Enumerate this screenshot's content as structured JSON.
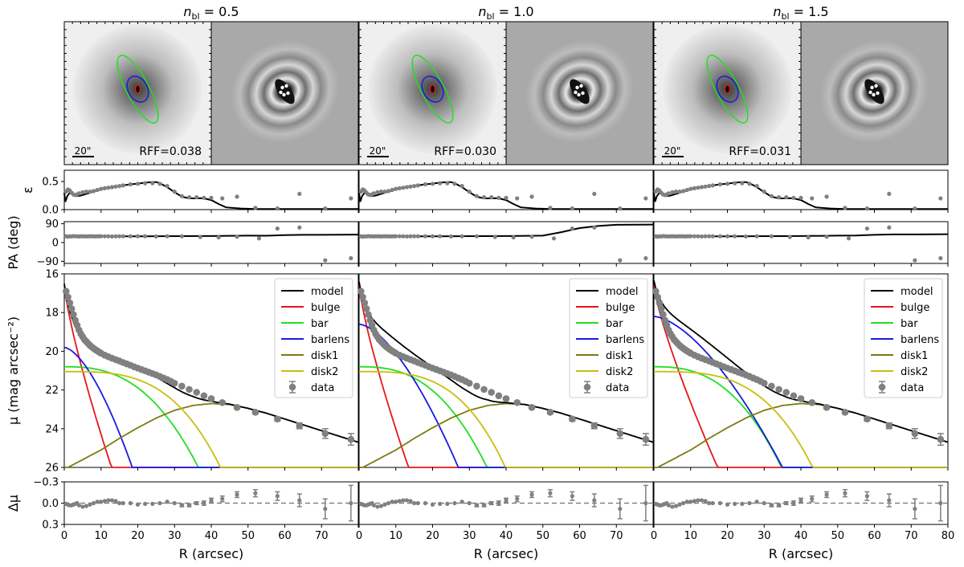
{
  "chart_data": {
    "type": "line",
    "layout": "5 rows x 3 columns",
    "columns": [
      {
        "title": "n_bl = 0.5",
        "title_sub": "bl",
        "title_value": " = 0.5",
        "rff": "RFF=0.038",
        "scale_label": "20\"",
        "bulge_end": 13.2,
        "bar_end": 36.5,
        "barlens_start": 19.8,
        "barlens_end": 18.5,
        "disk2_end": 42.5,
        "pa_end": 38
      },
      {
        "title": "n_bl = 1.0",
        "title_sub": "bl",
        "title_value": " = 1.0",
        "rff": "RFF=0.030",
        "scale_label": "20\"",
        "bulge_end": 13.8,
        "bar_end": 34.8,
        "barlens_start": 18.6,
        "barlens_end": 27.0,
        "disk2_end": 39.8,
        "pa_end": 86
      },
      {
        "title": "n_bl = 1.5",
        "title_sub": "bl",
        "title_value": " = 1.5",
        "rff": "RFF=0.031",
        "scale_label": "20\"",
        "bulge_end": 17.8,
        "bar_end": 34.7,
        "barlens_start": 18.2,
        "barlens_end": 35.0,
        "disk2_end": 43.2,
        "pa_end": 40
      }
    ],
    "x_axis": {
      "label": "R (arcsec)",
      "range": [
        0,
        80
      ],
      "ticks_left": [
        "0",
        "10",
        "20",
        "30",
        "40",
        "50",
        "60",
        "70"
      ],
      "ticks_right": [
        "0",
        "10",
        "20",
        "30",
        "40",
        "50",
        "60",
        "70",
        "80"
      ]
    },
    "ellipticity": {
      "ylabel": "ε",
      "range": [
        0,
        0.7
      ],
      "ticks": [
        "0.0",
        "0.5"
      ],
      "data_x": [
        0.5,
        1,
        1.5,
        2,
        2.5,
        3,
        3.5,
        4,
        5,
        6,
        7,
        8,
        9,
        10,
        11,
        12,
        13,
        14,
        15,
        16,
        18,
        20,
        22,
        24,
        26,
        28,
        30,
        32,
        34,
        36,
        38,
        40,
        43,
        47,
        52,
        58,
        64,
        71,
        78
      ],
      "data_y": [
        0.32,
        0.36,
        0.34,
        0.3,
        0.27,
        0.26,
        0.27,
        0.29,
        0.31,
        0.32,
        0.32,
        0.33,
        0.35,
        0.37,
        0.38,
        0.39,
        0.4,
        0.41,
        0.42,
        0.43,
        0.45,
        0.46,
        0.47,
        0.47,
        0.46,
        0.42,
        0.32,
        0.24,
        0.22,
        0.22,
        0.21,
        0.21,
        0.2,
        0.23,
        0.03,
        0.02,
        0.28,
        0.02,
        0.2
      ],
      "model_x": [
        0,
        0.3,
        0.8,
        1.5,
        2.5,
        3.5,
        4.5,
        6,
        8,
        10,
        12,
        14,
        16,
        18,
        20,
        22,
        24,
        25,
        26,
        28,
        30,
        32,
        34,
        36,
        37,
        38,
        40,
        42,
        44,
        48,
        52,
        60,
        70,
        80
      ],
      "model_y": [
        0.3,
        0.14,
        0.24,
        0.3,
        0.27,
        0.24,
        0.25,
        0.28,
        0.32,
        0.36,
        0.39,
        0.41,
        0.43,
        0.45,
        0.46,
        0.48,
        0.49,
        0.49,
        0.47,
        0.4,
        0.31,
        0.23,
        0.2,
        0.2,
        0.205,
        0.2,
        0.17,
        0.1,
        0.04,
        0.02,
        0.01,
        0.01,
        0.01,
        0.01
      ]
    },
    "pa": {
      "ylabel": "PA (deg)",
      "range": [
        -100,
        100
      ],
      "ticks": [
        "90",
        "0",
        "−90"
      ],
      "data_x": [
        0.5,
        1,
        1.5,
        2,
        2.5,
        3,
        3.5,
        4,
        4.5,
        5,
        5.5,
        6,
        6.5,
        7,
        7.5,
        8,
        8.5,
        9,
        9.5,
        10,
        11,
        12,
        13,
        14,
        15,
        16,
        18,
        20,
        22,
        25,
        28,
        32,
        37,
        42,
        47,
        53,
        58,
        64,
        71,
        78
      ],
      "data_y": [
        30,
        28,
        30,
        29,
        31,
        30,
        30,
        29,
        30,
        30,
        30,
        29,
        30,
        30,
        30,
        30,
        29,
        30,
        30,
        30,
        30,
        30,
        29,
        30,
        30,
        30,
        30,
        30,
        30,
        29,
        30,
        30,
        27,
        25,
        28,
        20,
        67,
        72,
        -85,
        -75
      ]
    },
    "mu": {
      "ylabel": "μ (mag arcsec⁻²)",
      "range": [
        16,
        26
      ],
      "inverted": true,
      "ticks": [
        "16",
        "18",
        "20",
        "22",
        "24",
        "26"
      ],
      "legend": [
        "model",
        "bulge",
        "bar",
        "barlens",
        "disk1",
        "disk2",
        "data"
      ],
      "data_x": [
        0.5,
        1,
        1.5,
        2,
        2.5,
        3,
        3.5,
        4,
        4.5,
        5,
        5.5,
        6,
        6.5,
        7,
        7.5,
        8,
        8.5,
        9,
        9.5,
        10,
        11,
        12,
        13,
        14,
        15,
        16,
        17,
        18,
        19,
        20,
        21,
        22,
        23,
        24,
        25,
        26,
        27,
        28,
        29,
        30,
        32,
        34,
        36,
        38,
        40,
        43,
        47,
        52,
        58,
        64,
        71,
        78
      ],
      "data_y": [
        16.9,
        17.2,
        17.5,
        17.8,
        18.1,
        18.4,
        18.65,
        18.9,
        19.1,
        19.25,
        19.4,
        19.5,
        19.6,
        19.7,
        19.78,
        19.85,
        19.92,
        19.98,
        20.04,
        20.1,
        20.2,
        20.28,
        20.36,
        20.43,
        20.5,
        20.58,
        20.65,
        20.72,
        20.8,
        20.87,
        20.94,
        21.01,
        21.08,
        21.15,
        21.22,
        21.3,
        21.38,
        21.46,
        21.55,
        21.65,
        21.8,
        21.97,
        22.12,
        22.3,
        22.45,
        22.65,
        22.9,
        23.15,
        23.5,
        23.85,
        24.25,
        24.55
      ],
      "err": [
        0.03,
        0.03,
        0.03,
        0.03,
        0.03,
        0.03,
        0.03,
        0.03,
        0.03,
        0.03,
        0.03,
        0.03,
        0.03,
        0.03,
        0.03,
        0.03,
        0.03,
        0.03,
        0.03,
        0.03,
        0.03,
        0.03,
        0.03,
        0.03,
        0.03,
        0.03,
        0.03,
        0.03,
        0.03,
        0.03,
        0.03,
        0.03,
        0.03,
        0.03,
        0.03,
        0.03,
        0.03,
        0.03,
        0.03,
        0.03,
        0.04,
        0.04,
        0.05,
        0.05,
        0.06,
        0.06,
        0.07,
        0.08,
        0.1,
        0.15,
        0.25,
        0.3
      ],
      "disk1": {
        "x": [
          0,
          5,
          10,
          15,
          20,
          25,
          30,
          35,
          40,
          45,
          50,
          55,
          60,
          65,
          70,
          75,
          80
        ],
        "y": [
          26.1,
          25.6,
          25.1,
          24.5,
          23.95,
          23.45,
          23.05,
          22.8,
          22.7,
          22.75,
          22.95,
          23.2,
          23.5,
          23.8,
          24.1,
          24.4,
          24.7
        ]
      }
    },
    "residuals": {
      "ylabel": "Δμ",
      "range": [
        0.3,
        -0.3
      ],
      "ticks": [
        "−0.3",
        "0.0",
        "0.3"
      ],
      "data_x": [
        0.5,
        1,
        1.5,
        2,
        2.5,
        3,
        3.5,
        4,
        5,
        6,
        7,
        8,
        9,
        10,
        11,
        12,
        13,
        14,
        15,
        16,
        18,
        20,
        22,
        24,
        26,
        28,
        30,
        32,
        34,
        36,
        38,
        40,
        43,
        47,
        52,
        58,
        64,
        71,
        78
      ],
      "data_y": [
        0.01,
        0.02,
        0.03,
        0.03,
        0.02,
        0.01,
        0.0,
        0.03,
        0.05,
        0.04,
        0.02,
        0.0,
        -0.02,
        -0.02,
        -0.03,
        -0.04,
        -0.04,
        -0.03,
        0.0,
        0.0,
        0.0,
        0.02,
        0.01,
        0.01,
        0.0,
        -0.02,
        0.0,
        0.03,
        0.03,
        0.0,
        0.0,
        -0.04,
        -0.06,
        -0.12,
        -0.14,
        -0.1,
        -0.04,
        0.08,
        0.0
      ],
      "err": [
        0.01,
        0.01,
        0.01,
        0.01,
        0.01,
        0.01,
        0.01,
        0.01,
        0.01,
        0.01,
        0.01,
        0.01,
        0.01,
        0.01,
        0.01,
        0.01,
        0.01,
        0.01,
        0.01,
        0.01,
        0.01,
        0.01,
        0.01,
        0.01,
        0.01,
        0.01,
        0.01,
        0.02,
        0.02,
        0.02,
        0.03,
        0.03,
        0.04,
        0.04,
        0.05,
        0.06,
        0.09,
        0.14,
        0.25
      ]
    },
    "colors": {
      "model": "#000000",
      "bulge": "#e6161a",
      "bar": "#20e020",
      "barlens": "#1a1ae0",
      "disk1": "#7b7b10",
      "disk2": "#c8be10",
      "data": "#808080"
    }
  }
}
